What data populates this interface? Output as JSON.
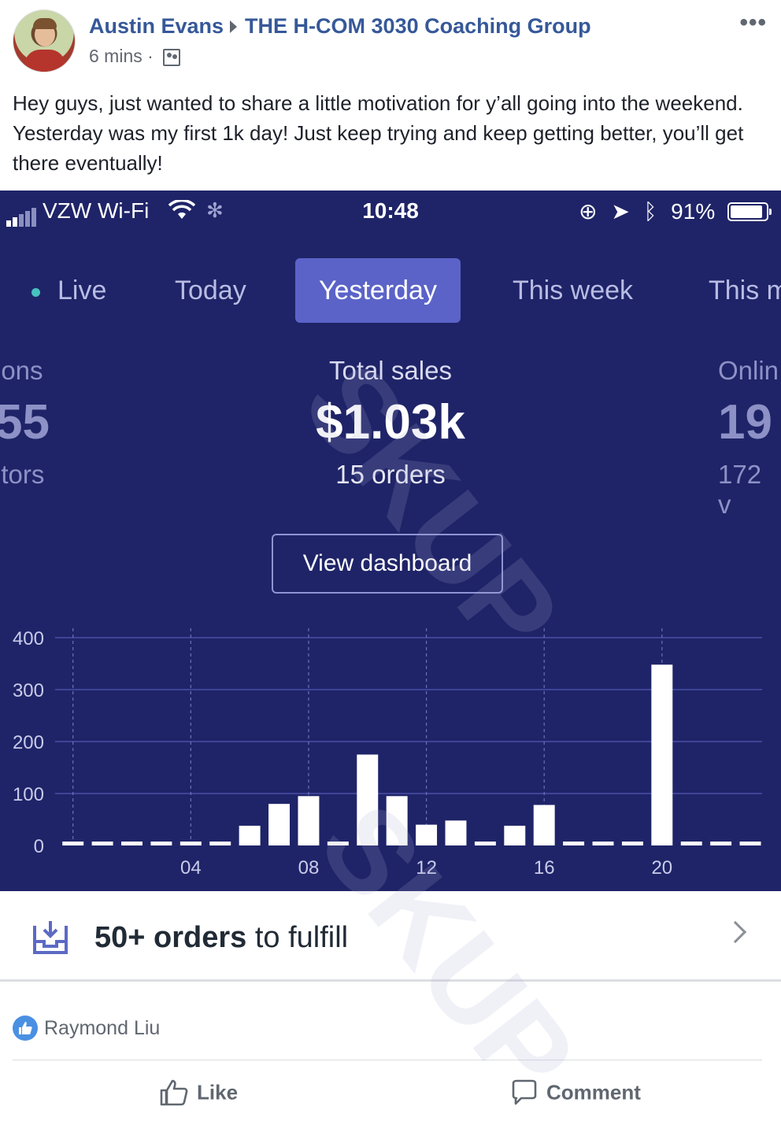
{
  "post": {
    "author": "Austin Evans",
    "group": "THE H-COM 3030 Coaching Group",
    "time": "6 mins",
    "separator": "·",
    "more_label": "•••",
    "text": "Hey guys, just wanted to share a little motivation for y’all going into the weekend. Yesterday was my first 1k day! Just keep trying and keep getting better, you’ll get there eventually!"
  },
  "phone": {
    "status": {
      "carrier": "VZW Wi-Fi",
      "time": "10:48",
      "battery": "91%",
      "battery_level": 0.91
    },
    "tabs": [
      {
        "label": "Live"
      },
      {
        "label": "Today"
      },
      {
        "label": "Yesterday",
        "active": true
      },
      {
        "label": "This week"
      },
      {
        "label": "This m"
      }
    ],
    "kpis": {
      "left": {
        "label": "ions",
        "value": "55",
        "sub": "itors"
      },
      "center": {
        "label": "Total sales",
        "value": "$1.03k",
        "sub": "15 orders"
      },
      "right": {
        "label": "Onlin",
        "value": "19",
        "sub": "172 v"
      }
    },
    "dashboard_button": "View dashboard"
  },
  "chart_data": {
    "type": "bar",
    "y_ticks": [
      "400",
      "300",
      "200",
      "100",
      "0"
    ],
    "x_ticks": [
      "04",
      "08",
      "12",
      "16",
      "20"
    ],
    "ylim": [
      0,
      400
    ],
    "x": [
      0,
      1,
      2,
      3,
      4,
      5,
      6,
      7,
      8,
      9,
      10,
      11,
      12,
      13,
      14,
      15,
      16,
      17,
      18,
      19,
      20,
      21,
      22,
      23
    ],
    "values": [
      0,
      0,
      0,
      0,
      0,
      0,
      38,
      80,
      95,
      0,
      175,
      95,
      40,
      48,
      0,
      38,
      78,
      0,
      0,
      0,
      348,
      0,
      0,
      0
    ],
    "colors": {
      "bar": "#ffffff",
      "grid": "#4a4fa8",
      "axis_text": "#c9cbea"
    }
  },
  "fulfill": {
    "count": "50+ orders",
    "suffix": " to fulfill"
  },
  "reactions": {
    "reactor": "Raymond Liu"
  },
  "actions": {
    "like": "Like",
    "comment": "Comment"
  },
  "watermark": "SKUP"
}
